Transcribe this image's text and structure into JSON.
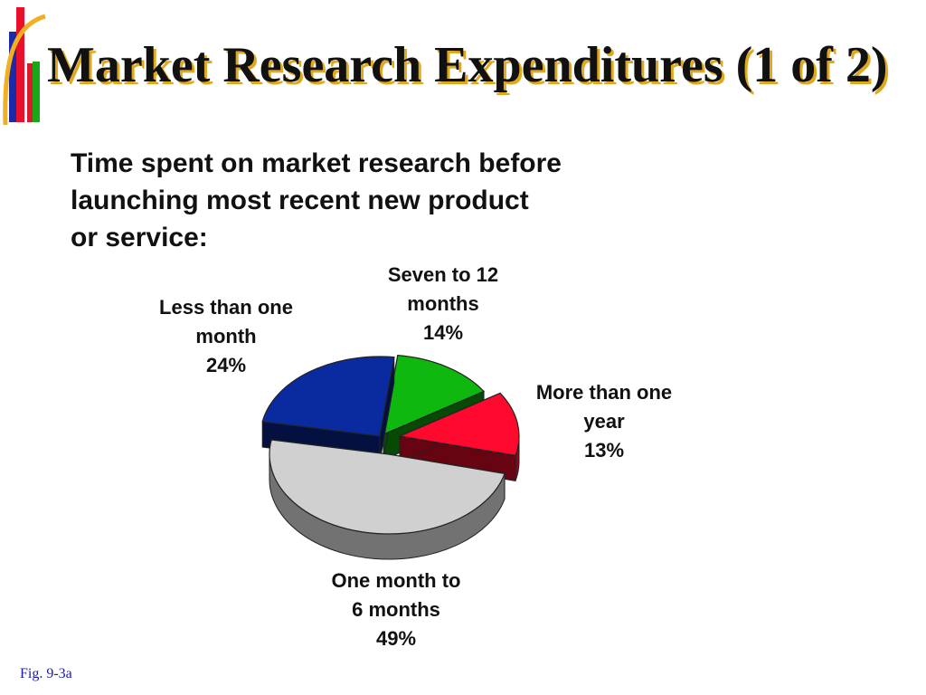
{
  "slide": {
    "title": "Market Research Expenditures (1 of 2)",
    "subtitle_lines": [
      "Time spent on market research before",
      "launching most recent new product",
      "or service:"
    ],
    "figure_ref": "Fig. 9-3a"
  },
  "colors": {
    "less_than_one_month": "#0a2aa0",
    "seven_to_12_months": "#0fb80f",
    "more_than_one_year": "#ff0a2e",
    "one_month_to_6_months": "#d0d0d0",
    "title_shadow": "#e0a81e"
  },
  "chart_data": {
    "type": "pie",
    "title": "",
    "slices": [
      {
        "label_lines": [
          "Seven to 12",
          "months"
        ],
        "value": 14,
        "value_label": "14%"
      },
      {
        "label_lines": [
          "More than one",
          "year"
        ],
        "value": 13,
        "value_label": "13%"
      },
      {
        "label_lines": [
          "One month to",
          "6 months"
        ],
        "value": 49,
        "value_label": "49%"
      },
      {
        "label_lines": [
          "Less than one",
          "month"
        ],
        "value": 24,
        "value_label": "24%"
      }
    ]
  }
}
